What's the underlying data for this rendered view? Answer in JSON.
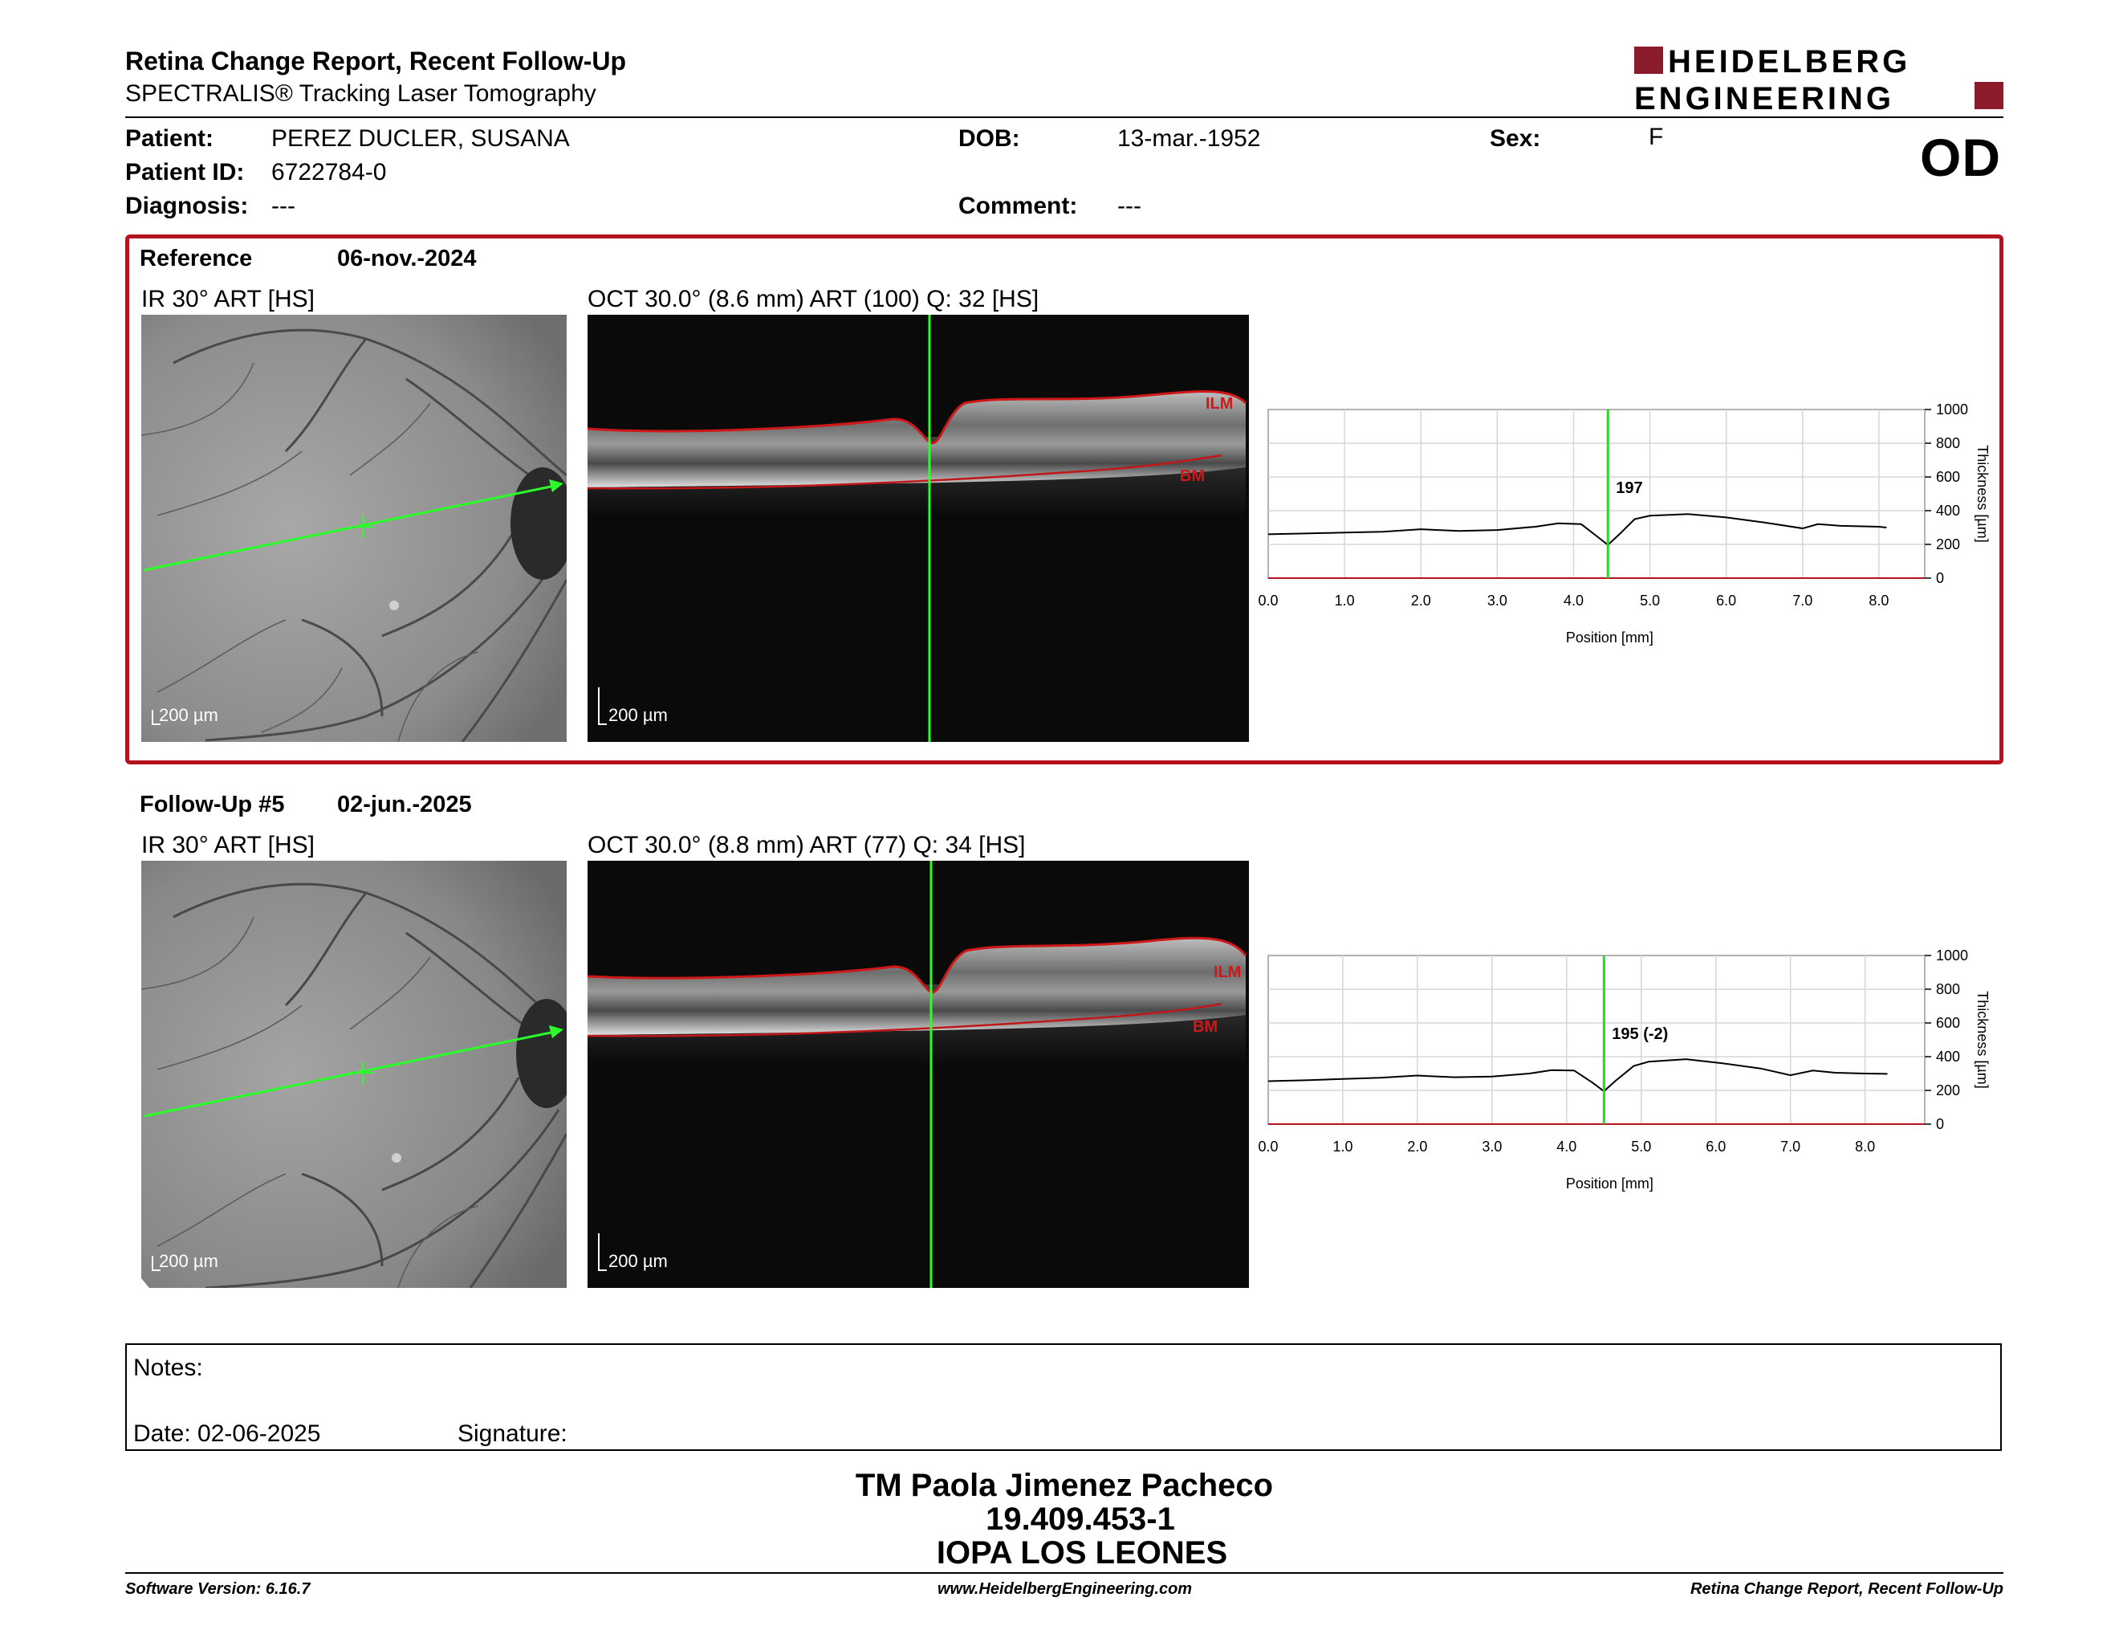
{
  "header": {
    "title": "Retina Change Report, Recent Follow-Up",
    "subtitle": "SPECTRALIS® Tracking Laser Tomography",
    "logo_line1": "HEIDELBERG",
    "logo_line2": "ENGINEERING",
    "brand_color": "#8b1a2b"
  },
  "patient": {
    "patient_label": "Patient:",
    "patient_value": "PEREZ DUCLER, SUSANA",
    "id_label": "Patient ID:",
    "id_value": "6722784-0",
    "diagnosis_label": "Diagnosis:",
    "diagnosis_value": "---",
    "dob_label": "DOB:",
    "dob_value": "13-mar.-1952",
    "comment_label": "Comment:",
    "comment_value": "---",
    "sex_label": "Sex:",
    "sex_value": "F",
    "eye": "OD"
  },
  "reference": {
    "label": "Reference",
    "date": "06-nov.-2024",
    "ir_title": "IR 30° ART [HS]",
    "oct_title": "OCT 30.0° (8.6 mm) ART (100) Q: 32 [HS]",
    "scale_ir": "200 µm",
    "scale_oct": "200 µm",
    "ilm": "ILM",
    "bm": "BM"
  },
  "followup": {
    "label": "Follow-Up #5",
    "date": "02-jun.-2025",
    "ir_title": "IR 30° ART [HS]",
    "oct_title": "OCT 30.0° (8.8 mm) ART (77) Q: 34 [HS]",
    "scale_ir": "200 µm",
    "scale_oct": "200 µm",
    "ilm": "ILM",
    "bm": "BM"
  },
  "chart_data": [
    {
      "type": "line",
      "xlabel": "Position [mm]",
      "ylabel": "Thickness [µm]",
      "xlim": [
        0,
        8.6
      ],
      "ylim": [
        0,
        1000
      ],
      "xticks": [
        "0.0",
        "1.0",
        "2.0",
        "3.0",
        "4.0",
        "5.0",
        "6.0",
        "7.0",
        "8.0"
      ],
      "yticks": [
        "0",
        "200",
        "400",
        "600",
        "800",
        "1000"
      ],
      "marker_x": 4.45,
      "annotation": "197",
      "x": [
        0.0,
        0.5,
        1.0,
        1.5,
        2.0,
        2.5,
        3.0,
        3.5,
        3.8,
        4.1,
        4.3,
        4.45,
        4.6,
        4.8,
        5.0,
        5.5,
        6.0,
        6.5,
        7.0,
        7.2,
        7.5,
        8.0,
        8.1
      ],
      "y": [
        260,
        265,
        270,
        275,
        290,
        280,
        285,
        305,
        325,
        320,
        250,
        197,
        260,
        350,
        370,
        380,
        360,
        330,
        295,
        320,
        310,
        305,
        300
      ]
    },
    {
      "type": "line",
      "xlabel": "Position [mm]",
      "ylabel": "Thickness [µm]",
      "xlim": [
        0,
        8.8
      ],
      "ylim": [
        0,
        1000
      ],
      "xticks": [
        "0.0",
        "1.0",
        "2.0",
        "3.0",
        "4.0",
        "5.0",
        "6.0",
        "7.0",
        "8.0"
      ],
      "yticks": [
        "0",
        "200",
        "400",
        "600",
        "800",
        "1000"
      ],
      "marker_x": 4.5,
      "annotation": "195 (-2)",
      "x": [
        0.0,
        0.5,
        1.0,
        1.5,
        2.0,
        2.5,
        3.0,
        3.5,
        3.8,
        4.1,
        4.35,
        4.5,
        4.65,
        4.9,
        5.1,
        5.6,
        6.1,
        6.6,
        7.0,
        7.3,
        7.6,
        8.0,
        8.3
      ],
      "y": [
        255,
        260,
        268,
        275,
        288,
        278,
        282,
        300,
        320,
        318,
        245,
        195,
        255,
        345,
        370,
        385,
        360,
        330,
        290,
        318,
        305,
        300,
        298
      ]
    }
  ],
  "notes": {
    "notes_label": "Notes:",
    "date_label": "Date: 02-06-2025",
    "signature_label": "Signature:"
  },
  "signature": {
    "line1": "TM Paola Jimenez Pacheco",
    "line2": "19.409.453-1",
    "line3": "IOPA LOS LEONES"
  },
  "footer": {
    "left": "Software Version: 6.16.7",
    "center": "www.HeidelbergEngineering.com",
    "right": "Retina Change Report, Recent Follow-Up"
  }
}
